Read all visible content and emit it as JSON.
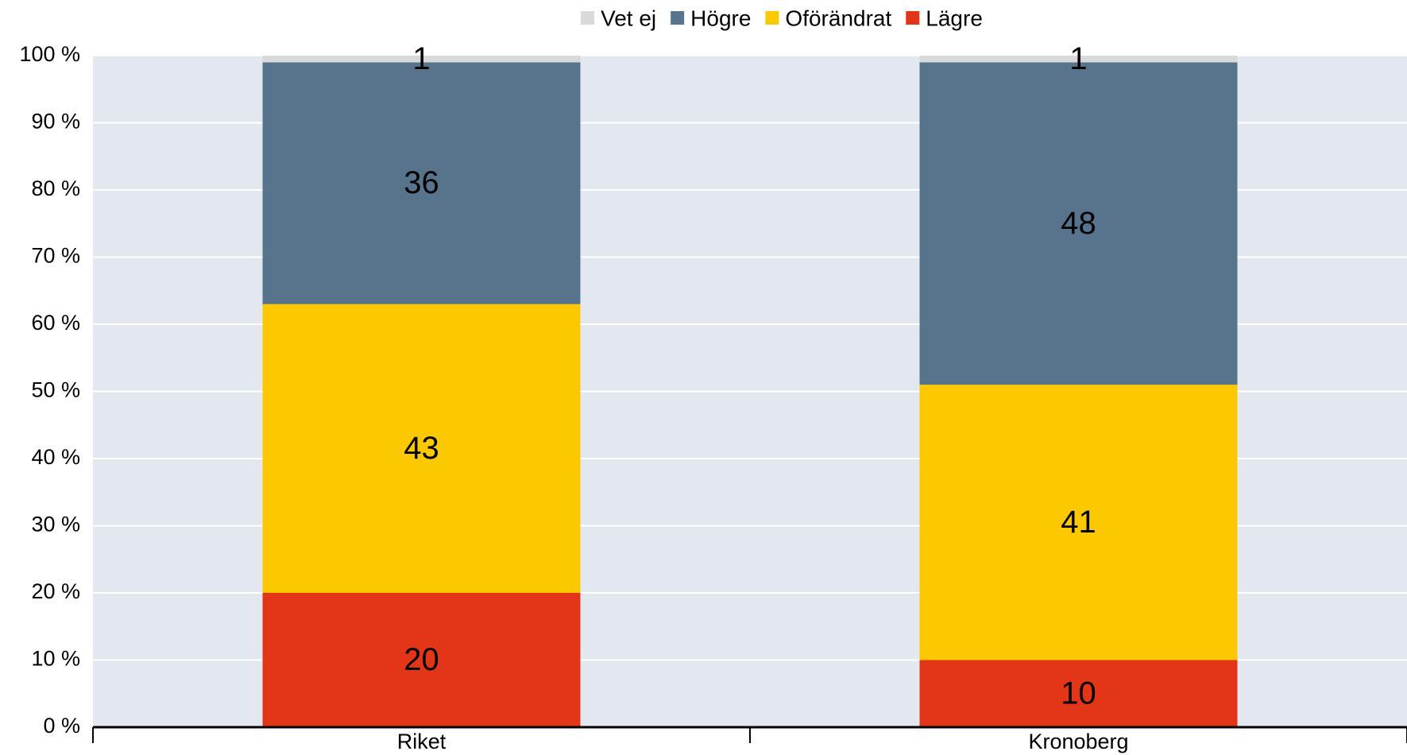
{
  "chart_data": {
    "type": "stacked_bar",
    "categories": [
      "Riket",
      "Kronoberg"
    ],
    "series": [
      {
        "name": "Vet ej",
        "color": "#d9d9d9",
        "values": [
          1,
          1
        ]
      },
      {
        "name": "Högre",
        "color": "#57748c",
        "values": [
          36,
          48
        ]
      },
      {
        "name": "Oförändrat",
        "color": "#fcc900",
        "values": [
          43,
          41
        ]
      },
      {
        "name": "Lägre",
        "color": "#e33618",
        "values": [
          20,
          10
        ]
      }
    ],
    "ylim": [
      0,
      100
    ],
    "yticks": [
      {
        "value": 0,
        "label": "0 %"
      },
      {
        "value": 10,
        "label": "10 %"
      },
      {
        "value": 20,
        "label": "20 %"
      },
      {
        "value": 30,
        "label": "30 %"
      },
      {
        "value": 40,
        "label": "40 %"
      },
      {
        "value": 50,
        "label": "50 %"
      },
      {
        "value": 60,
        "label": "60 %"
      },
      {
        "value": 70,
        "label": "70 %"
      },
      {
        "value": 80,
        "label": "80 %"
      },
      {
        "value": 90,
        "label": "90 %"
      },
      {
        "value": 100,
        "label": "100 %"
      }
    ],
    "grid": true,
    "legend": "top"
  }
}
